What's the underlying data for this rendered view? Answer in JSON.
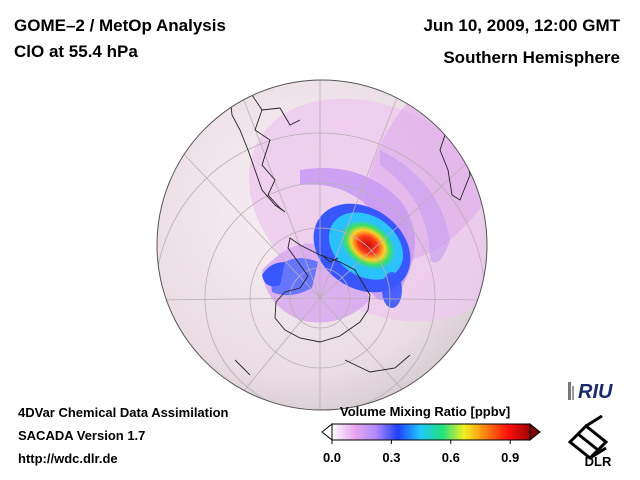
{
  "header": {
    "title_line1": "GOME–2 / MetOp Analysis",
    "title_line2": "ClO at 55.4 hPa",
    "date": "Jun 10, 2009, 12:00 GMT",
    "region": "Southern Hemisphere"
  },
  "footer": {
    "line1": "4DVar Chemical Data Assimilation",
    "line2": "SACADA Version 1.7",
    "line3": "http://wdc.dlr.de"
  },
  "colorbar": {
    "label": "Volume Mixing Ratio [ppbv]",
    "ticks": [
      "0.0",
      "0.3",
      "0.6",
      "0.9"
    ],
    "tick_values": [
      0.0,
      0.3,
      0.6,
      0.9
    ],
    "range": [
      0.0,
      1.0
    ],
    "stops": [
      "#ffffff",
      "#e8a8f0",
      "#b088f8",
      "#2040ff",
      "#20c8ff",
      "#20e080",
      "#f0f020",
      "#ff8010",
      "#ff1010",
      "#a00000"
    ]
  },
  "logos": {
    "riu_text": "RIU",
    "dlr_text": "DLR"
  },
  "colors": {
    "globe_background": "#f3eaef",
    "grid": "#b8b0b4",
    "coast": "#222222"
  }
}
